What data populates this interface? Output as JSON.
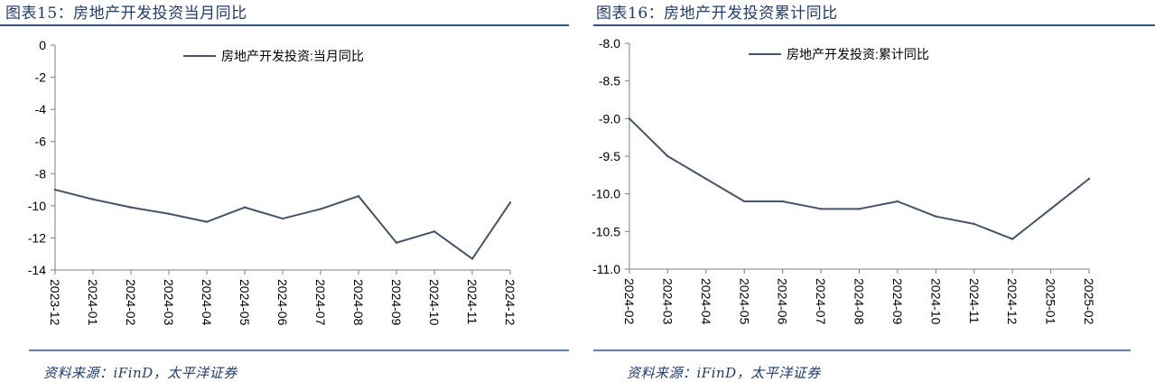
{
  "left": {
    "title": "图表15：房地产开发投资当月同比",
    "source": "资料来源：iFinD，太平洋证券"
  },
  "right": {
    "title": "图表16：房地产开发投资累计同比",
    "source": "资料来源：iFinD，太平洋证券"
  },
  "chart_data": [
    {
      "type": "line",
      "title": "",
      "xlabel": "",
      "ylabel": "",
      "categories": [
        "2023-12",
        "2024-01",
        "2024-02",
        "2024-03",
        "2024-04",
        "2024-05",
        "2024-06",
        "2024-07",
        "2024-08",
        "2024-09",
        "2024-10",
        "2024-11",
        "2024-12"
      ],
      "series": [
        {
          "name": "房地产开发投资:当月同比",
          "values": [
            -9.0,
            -9.6,
            -10.1,
            -10.5,
            -11.0,
            -10.1,
            -10.8,
            -10.2,
            -9.4,
            -12.3,
            -11.6,
            -13.3,
            -9.8
          ]
        }
      ],
      "ylim": [
        -14,
        0
      ],
      "yticks": [
        0,
        -2,
        -4,
        -6,
        -8,
        -10,
        -12,
        -14
      ],
      "ytick_labels": [
        "0",
        "-2",
        "-4",
        "-6",
        "-8",
        "-10",
        "-12",
        "-14"
      ],
      "grid": false,
      "legend_position": "top-center",
      "line_color": "#44546a"
    },
    {
      "type": "line",
      "title": "",
      "xlabel": "",
      "ylabel": "",
      "categories": [
        "2024-02",
        "2024-03",
        "2024-04",
        "2024-05",
        "2024-06",
        "2024-07",
        "2024-08",
        "2024-09",
        "2024-10",
        "2024-11",
        "2024-12",
        "2025-01",
        "2025-02"
      ],
      "series": [
        {
          "name": "房地产开发投资:累计同比",
          "values": [
            -9.0,
            -9.5,
            -9.8,
            -10.1,
            -10.1,
            -10.2,
            -10.2,
            -10.1,
            -10.3,
            -10.4,
            -10.6,
            -10.2,
            -9.8
          ]
        }
      ],
      "ylim": [
        -11,
        -8
      ],
      "yticks": [
        -8.0,
        -8.5,
        -9.0,
        -9.5,
        -10.0,
        -10.5,
        -11.0
      ],
      "ytick_labels": [
        "-8.0",
        "-8.5",
        "-9.0",
        "-9.5",
        "-10.0",
        "-10.5",
        "-11.0"
      ],
      "grid": false,
      "legend_position": "top-center",
      "line_color": "#44546a"
    }
  ]
}
